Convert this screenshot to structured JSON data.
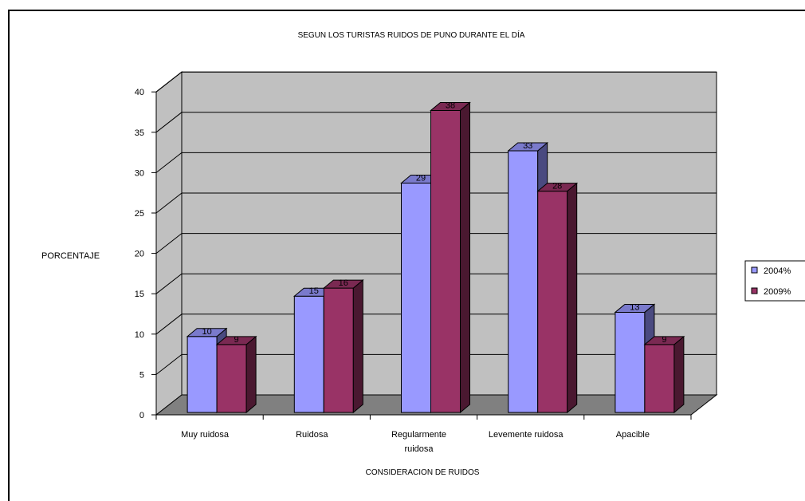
{
  "chart_data": {
    "type": "bar",
    "title": "SEGUN LOS TURISTAS RUIDOS DE PUNO DURANTE EL DÍA",
    "xlabel": "CONSIDERACION DE RUIDOS",
    "ylabel": "PORCENTAJE",
    "ylim": [
      0,
      40
    ],
    "yticks": [
      "0",
      "5",
      "10",
      "15",
      "20",
      "25",
      "30",
      "35",
      "40"
    ],
    "categories": [
      [
        "Muy ruidosa"
      ],
      [
        "Ruidosa"
      ],
      [
        "Regularmente",
        "ruidosa"
      ],
      [
        "Levemente ruidosa"
      ],
      [
        "Apacible"
      ]
    ],
    "series": [
      {
        "name": "2004%",
        "values": [
          10,
          15,
          29,
          33,
          13
        ],
        "labels": [
          "10",
          "15",
          "29",
          "33",
          "13"
        ]
      },
      {
        "name": "2009%",
        "values": [
          9,
          16,
          38,
          28,
          9
        ],
        "labels": [
          "9",
          "16",
          "38",
          "28",
          "9"
        ]
      }
    ],
    "grid": true,
    "legend_position": "right",
    "three_d": true
  },
  "colors": {
    "series": [
      "#9999ff",
      "#993366"
    ],
    "series_side": [
      "#4a4a80",
      "#4a1830"
    ],
    "series_top": [
      "#7a7acc",
      "#7a2952"
    ],
    "back_wall": "#c0c0c0",
    "side_wall": "#c0c0c0",
    "floor": "#808080",
    "gridline": "#000000"
  }
}
